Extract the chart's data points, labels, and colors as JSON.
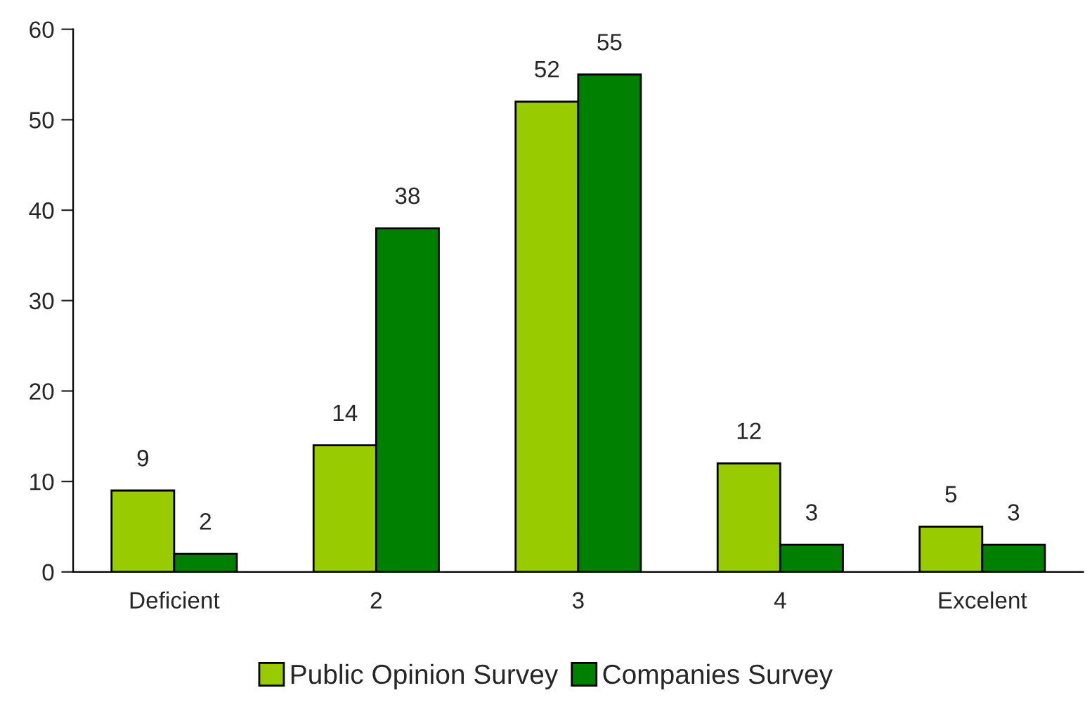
{
  "chart_data": {
    "type": "bar",
    "categories": [
      "Deficient",
      "2",
      "3",
      "4",
      "Excelent"
    ],
    "series": [
      {
        "name": "Public Opinion Survey",
        "color": "#99cc00",
        "values": [
          9,
          14,
          52,
          12,
          5
        ]
      },
      {
        "name": "Companies Survey",
        "color": "#008000",
        "values": [
          2,
          38,
          55,
          3,
          3
        ]
      }
    ],
    "ylim": [
      0,
      60
    ],
    "yticks": [
      0,
      10,
      20,
      30,
      40,
      50,
      60
    ],
    "data_labels": true,
    "legend": "bottom",
    "grid": false
  }
}
